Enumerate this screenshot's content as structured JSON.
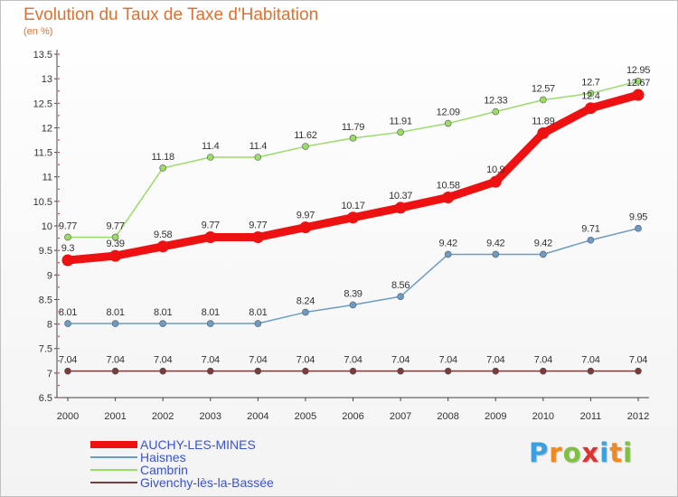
{
  "chart_data": {
    "type": "line",
    "title": "Evolution du Taux de Taxe d'Habitation",
    "subtitle": "(en %)",
    "xlabel": "",
    "ylabel": "(en %)",
    "categories": [
      "2000",
      "2001",
      "2002",
      "2003",
      "2004",
      "2005",
      "2006",
      "2007",
      "2008",
      "2009",
      "2010",
      "2011",
      "2012"
    ],
    "yticks": [
      "6.5",
      "7",
      "7.5",
      "8",
      "8.5",
      "9",
      "9.5",
      "10",
      "10.5",
      "11",
      "11.5",
      "12",
      "12.5",
      "13",
      "13.5"
    ],
    "ylim": [
      6.5,
      13.5
    ],
    "grid": false,
    "legend_position": "bottom-left",
    "series": [
      {
        "name": "AUCHY-LES-MINES",
        "color": "#ee1111",
        "values": [
          9.3,
          9.39,
          9.58,
          9.77,
          9.77,
          9.97,
          10.17,
          10.37,
          10.58,
          10.9,
          11.89,
          12.4,
          12.67
        ],
        "labels": [
          "9.3",
          "9.39",
          "9.58",
          "9.77",
          "9.77",
          "9.97",
          "10.17",
          "10.37",
          "10.58",
          "10.9",
          "11.89",
          "12.4",
          "12.67"
        ]
      },
      {
        "name": "Haisnes",
        "color": "#6b9cc8",
        "values": [
          8.01,
          8.01,
          8.01,
          8.01,
          8.01,
          8.24,
          8.39,
          8.56,
          9.42,
          9.42,
          9.42,
          9.71,
          9.95
        ],
        "labels": [
          "8.01",
          "8.01",
          "8.01",
          "8.01",
          "8.01",
          "8.24",
          "8.39",
          "8.56",
          "9.42",
          "9.42",
          "9.42",
          "9.71",
          "9.95"
        ]
      },
      {
        "name": "Cambrin",
        "color": "#99dd66",
        "values": [
          9.77,
          9.77,
          11.18,
          11.4,
          11.4,
          11.62,
          11.79,
          11.91,
          12.09,
          12.33,
          12.57,
          12.7,
          12.95
        ],
        "labels": [
          "9.77",
          "9.77",
          "11.18",
          "11.4",
          "11.4",
          "11.62",
          "11.79",
          "11.91",
          "12.09",
          "12.33",
          "12.57",
          "12.7",
          "12.95"
        ]
      },
      {
        "name": "Givenchy-lès-la-Bassée",
        "color": "#7a3b3b",
        "values": [
          7.04,
          7.04,
          7.04,
          7.04,
          7.04,
          7.04,
          7.04,
          7.04,
          7.04,
          7.04,
          7.04,
          7.04,
          7.04
        ],
        "labels": [
          "7.04",
          "7.04",
          "7.04",
          "7.04",
          "7.04",
          "7.04",
          "7.04",
          "7.04",
          "7.04",
          "7.04",
          "7.04",
          "7.04",
          "7.04"
        ]
      }
    ]
  },
  "brand": {
    "letters": [
      "P",
      "r",
      "o",
      "x",
      "i",
      "t",
      "i"
    ],
    "colors": [
      "#3aa0e0",
      "#f08a20",
      "#80c040",
      "#e03030",
      "#3aa0e0",
      "#f08a20",
      "#80c040"
    ]
  }
}
